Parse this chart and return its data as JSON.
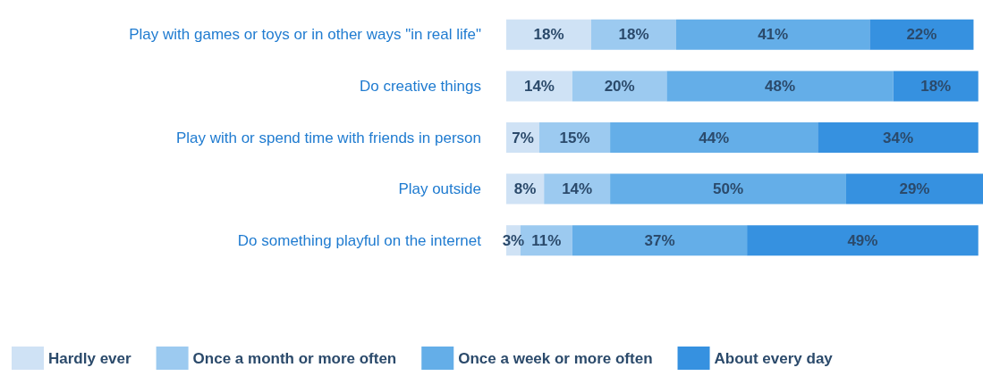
{
  "chart_data": {
    "type": "bar",
    "orientation": "horizontal",
    "stacked": true,
    "legend": "bottom",
    "categories": [
      "Play with games or toys or in other ways \"in real life\"",
      "Do creative things",
      "Play with or spend time with friends in person",
      "Play outside",
      "Do something playful on the internet"
    ],
    "series": [
      {
        "name": "Hardly ever",
        "color": "#cfe2f5",
        "values": [
          18,
          14,
          7,
          8,
          3
        ],
        "value_labels": [
          "18%",
          "14%",
          "7%",
          "8%",
          "3%"
        ]
      },
      {
        "name": "Once a month or more often",
        "color": "#9ccaf0",
        "values": [
          18,
          20,
          15,
          14,
          11
        ],
        "value_labels": [
          "18%",
          "20%",
          "15%",
          "14%",
          "11%"
        ]
      },
      {
        "name": "Once a week or more often",
        "color": "#64aee8",
        "values": [
          41,
          48,
          44,
          50,
          37
        ],
        "value_labels": [
          "41%",
          "48%",
          "44%",
          "50%",
          "37%"
        ]
      },
      {
        "name": "About every day",
        "color": "#3691e0",
        "values": [
          22,
          18,
          34,
          29,
          49
        ],
        "value_labels": [
          "22%",
          "18%",
          "34%",
          "29%",
          "49%"
        ]
      }
    ]
  }
}
